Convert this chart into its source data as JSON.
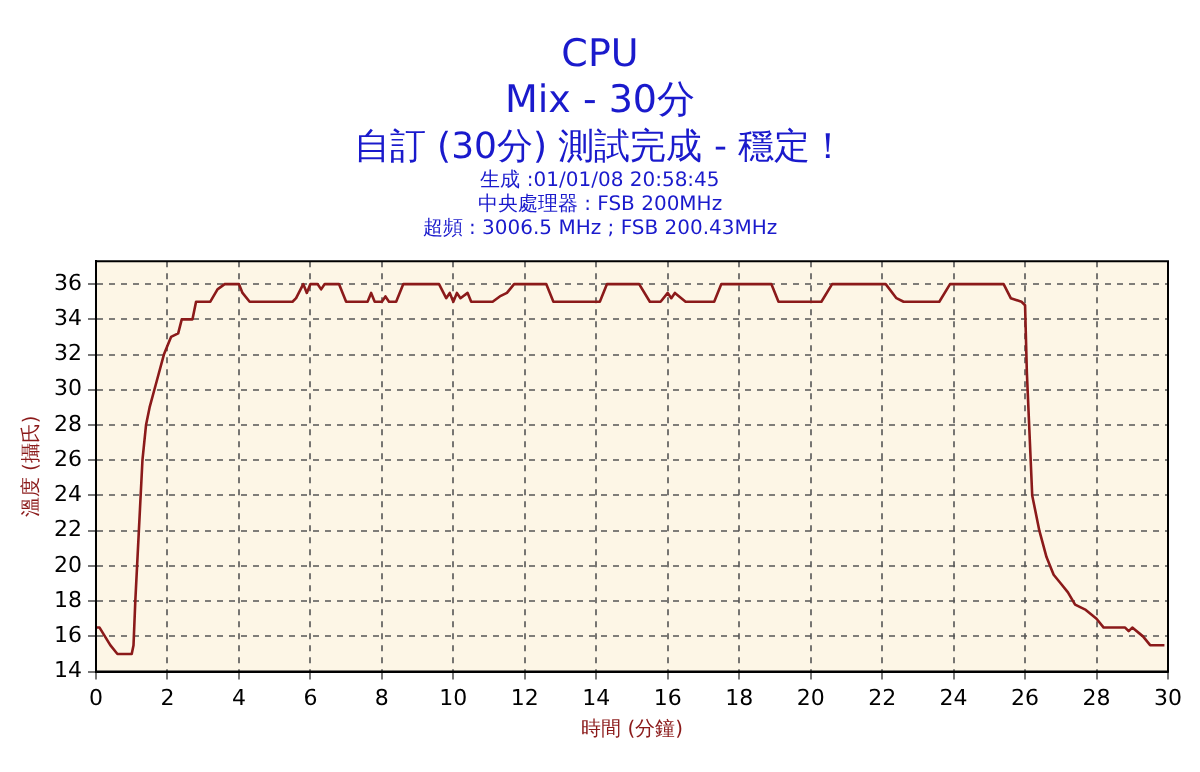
{
  "chart_data": {
    "type": "line",
    "title": "CPU",
    "subtitle": "Mix - 30分",
    "annotations": [
      "自訂 (30分) 測試完成 - 穩定！",
      "生成 :01/01/08 20:58:45",
      "中央處理器 : FSB 200MHz",
      "超頻 : 3006.5 MHz ; FSB 200.43MHz"
    ],
    "xlabel": "時間 (分鐘)",
    "ylabel": "溫度 (攝氏)",
    "xlim": [
      0,
      30
    ],
    "xticks": [
      0,
      2,
      4,
      6,
      8,
      10,
      12,
      14,
      16,
      18,
      20,
      22,
      24,
      26,
      28,
      30
    ],
    "ylim": [
      14,
      37.3
    ],
    "yticks": [
      14,
      16,
      18,
      20,
      22,
      24,
      26,
      28,
      30,
      32,
      34,
      36
    ],
    "grid": true,
    "legend": false,
    "marker": "none",
    "line_style": "solid",
    "series": [
      {
        "color": "#8b1a1a",
        "x": [
          0,
          0.1,
          0.4,
          0.6,
          1,
          1.05,
          1.1,
          1.2,
          1.3,
          1.4,
          1.5,
          1.7,
          1.9,
          2.1,
          2.3,
          2.4,
          2.7,
          2.8,
          3.2,
          3.4,
          3.6,
          4.0,
          4.1,
          4.3,
          5.5,
          5.6,
          5.8,
          5.9,
          6.0,
          6.2,
          6.3,
          6.4,
          6.8,
          7.0,
          7.6,
          7.7,
          7.8,
          8.0,
          8.1,
          8.2,
          8.4,
          8.6,
          9.6,
          9.8,
          9.9,
          10.0,
          10.1,
          10.2,
          10.4,
          10.5,
          11.1,
          11.3,
          11.5,
          11.7,
          12.6,
          12.8,
          14.1,
          14.3,
          15.2,
          15.5,
          15.8,
          16.0,
          16.1,
          16.2,
          16.5,
          17.3,
          17.5,
          18.9,
          19.1,
          20.3,
          20.6,
          22.1,
          22.4,
          22.6,
          23.6,
          23.9,
          25.4,
          25.6,
          25.9,
          26.0,
          26.05,
          26.2,
          26.4,
          26.6,
          26.8,
          27.0,
          27.2,
          27.4,
          27.7,
          28.0,
          28.2,
          28.8,
          28.9,
          29.0,
          29.3,
          29.5,
          29.9
        ],
        "values": [
          16.5,
          16.5,
          15.5,
          15,
          15,
          15.5,
          18,
          22,
          26,
          28,
          29,
          30.5,
          32,
          33,
          33.2,
          34,
          34,
          35,
          35,
          35.7,
          36,
          36,
          35.5,
          35,
          35,
          35.2,
          36,
          35.5,
          36,
          36,
          35.7,
          36,
          36,
          35,
          35,
          35.5,
          35,
          35,
          35.3,
          35,
          35,
          36,
          36,
          35.2,
          35.5,
          35,
          35.5,
          35.2,
          35.5,
          35,
          35,
          35.3,
          35.5,
          36,
          36,
          35,
          35,
          36,
          36,
          35,
          35,
          35.5,
          35.2,
          35.5,
          35,
          35,
          36,
          36,
          35,
          35,
          36,
          36,
          35.2,
          35,
          35,
          36,
          36,
          35.2,
          35,
          34.8,
          31,
          24,
          22,
          20.5,
          19.5,
          19,
          18.5,
          17.8,
          17.5,
          17,
          16.5,
          16.5,
          16.3,
          16.5,
          16,
          15.5,
          15.5
        ]
      }
    ]
  }
}
